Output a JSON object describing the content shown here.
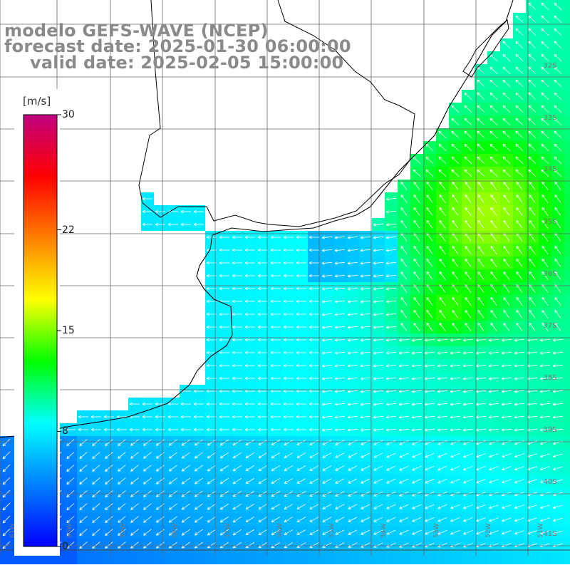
{
  "title": {
    "line1": "modelo GEFS-WAVE (NCEP)",
    "line2": "forecast date: 2025-01-30 06:00:00",
    "line3": "valid date: 2025-02-05 15:00:00"
  },
  "colorbar": {
    "unit": "[m/s]",
    "min": 0,
    "max": 30,
    "tick_labels": [
      "30",
      "22",
      "15",
      "8",
      "0"
    ],
    "tick_values": [
      30,
      22,
      15,
      8,
      0
    ],
    "colors": [
      "#0000ff",
      "#0080ff",
      "#00ffff",
      "#00ff00",
      "#ffff00",
      "#ff8000",
      "#ff0000",
      "#c00080"
    ]
  },
  "map": {
    "variable": "wind speed and direction",
    "latitude_labels": [
      "32S",
      "33S",
      "34S",
      "35S",
      "36S",
      "37S",
      "38S",
      "39S",
      "40S",
      "41S"
    ],
    "longitude_labels": [
      "61W",
      "60W",
      "59W",
      "58W",
      "57W",
      "56W",
      "55W",
      "54W",
      "53W",
      "52W",
      "51W"
    ],
    "land_color": "#ffffff",
    "coastline_color": "#000000",
    "grid_color": "#666666",
    "arrow_color": "#ffffff"
  }
}
